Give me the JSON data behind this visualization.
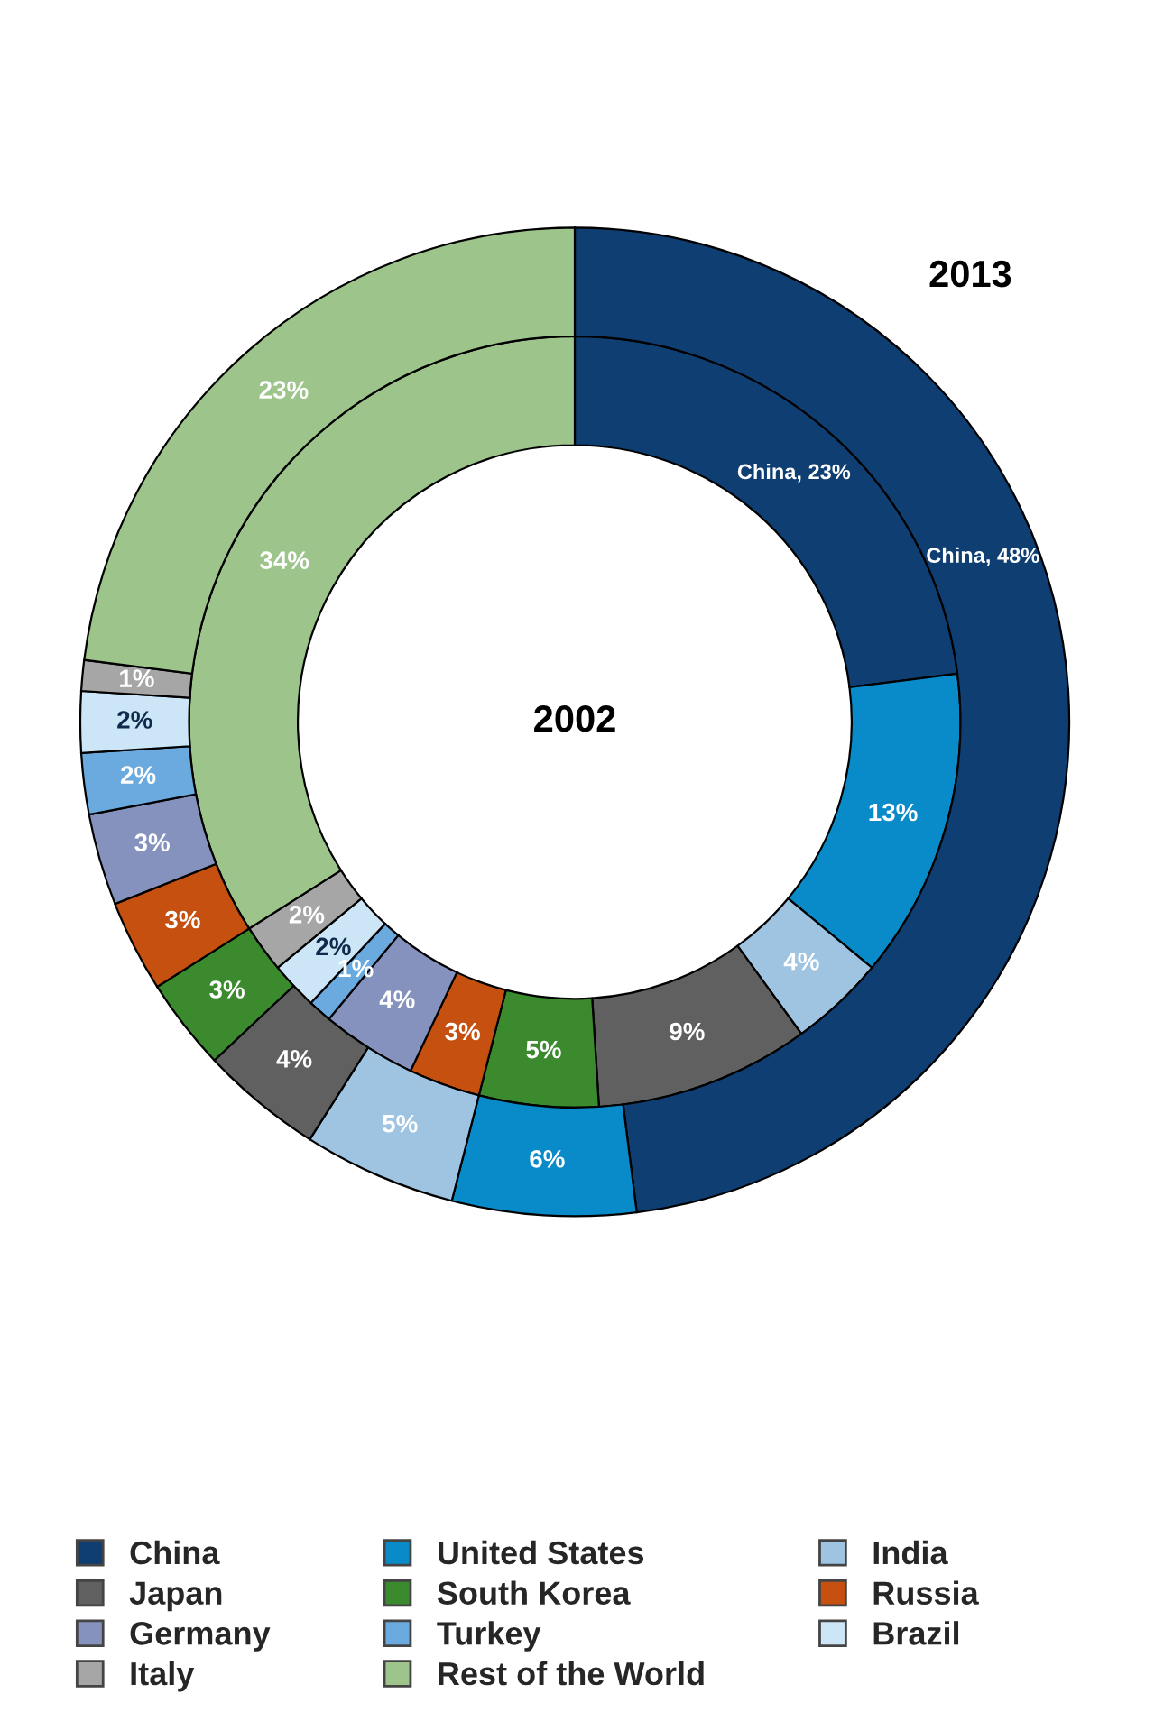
{
  "chart_data": {
    "type": "donut",
    "legend": "bottom",
    "categories": [
      "China",
      "United States",
      "India",
      "Japan",
      "South Korea",
      "Russia",
      "Germany",
      "Turkey",
      "Brazil",
      "Italy",
      "Rest of the World"
    ],
    "colors": [
      "#0f3e72",
      "#0a8bc9",
      "#9fc4e2",
      "#606060",
      "#3b8a2d",
      "#c5500f",
      "#8592bd",
      "#6aaadf",
      "#cce5f7",
      "#a6a6a6",
      "#9dc48b"
    ],
    "series": [
      {
        "name": "2002",
        "values": [
          23,
          13,
          4,
          9,
          5,
          3,
          4,
          1,
          2,
          2,
          34
        ],
        "value_labels": [
          "China, 23%",
          "13%",
          "4%",
          "9%",
          "5%",
          "3%",
          "4%",
          "1%",
          "2%",
          "2%",
          "34%"
        ]
      },
      {
        "name": "2013",
        "values": [
          48,
          6,
          5,
          4,
          3,
          3,
          3,
          2,
          2,
          1,
          23
        ],
        "value_labels": [
          "China, 48%",
          "6%",
          "5%",
          "4%",
          "3%",
          "3%",
          "3%",
          "2%",
          "2%",
          "1%",
          "23%"
        ]
      }
    ]
  }
}
